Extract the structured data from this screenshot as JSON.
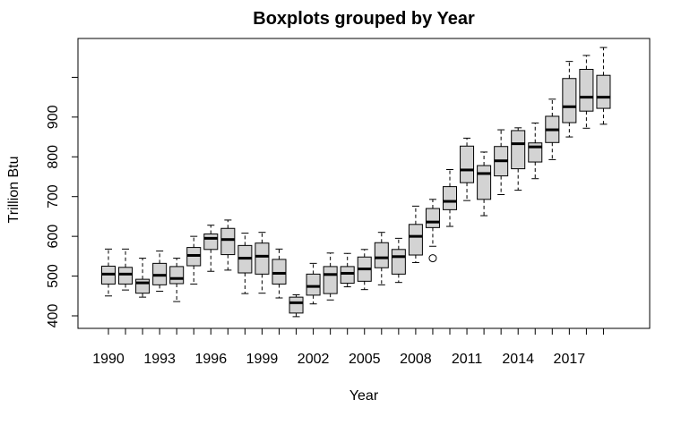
{
  "chart_data": {
    "type": "boxplot",
    "title": "Boxplots grouped by Year",
    "xlabel": "Year",
    "ylabel": "Trillion Btu",
    "ylim": [
      370,
      1010
    ],
    "yticks": [
      400,
      500,
      600,
      700,
      800,
      900
    ],
    "yticks_minor_unlabeled": [
      1000
    ],
    "xtick_labels": [
      "1990",
      "1993",
      "1996",
      "1999",
      "2002",
      "2005",
      "2008",
      "2011",
      "2014",
      "2017"
    ],
    "grid": false,
    "box_color": "#d3d3d3",
    "categories": [
      "1990",
      "1991",
      "1992",
      "1993",
      "1994",
      "1995",
      "1996",
      "1997",
      "1998",
      "1999",
      "2000",
      "2001",
      "2002",
      "2003",
      "2004",
      "2005",
      "2006",
      "2007",
      "2008",
      "2009",
      "2010",
      "2011",
      "2012",
      "2013",
      "2014",
      "2015",
      "2016",
      "2017",
      "2018",
      "2019"
    ],
    "boxes": [
      {
        "low": 450,
        "q1": 480,
        "median": 505,
        "q3": 525,
        "high": 568
      },
      {
        "low": 465,
        "q1": 480,
        "median": 505,
        "q3": 522,
        "high": 568
      },
      {
        "low": 447,
        "q1": 457,
        "median": 483,
        "q3": 492,
        "high": 545
      },
      {
        "low": 462,
        "q1": 478,
        "median": 502,
        "q3": 532,
        "high": 563
      },
      {
        "low": 436,
        "q1": 481,
        "median": 494,
        "q3": 524,
        "high": 545
      },
      {
        "low": 480,
        "q1": 526,
        "median": 552,
        "q3": 572,
        "high": 600
      },
      {
        "low": 512,
        "q1": 567,
        "median": 595,
        "q3": 606,
        "high": 628
      },
      {
        "low": 515,
        "q1": 554,
        "median": 592,
        "q3": 620,
        "high": 641
      },
      {
        "low": 456,
        "q1": 508,
        "median": 545,
        "q3": 577,
        "high": 608
      },
      {
        "low": 457,
        "q1": 505,
        "median": 550,
        "q3": 583,
        "high": 610
      },
      {
        "low": 445,
        "q1": 480,
        "median": 507,
        "q3": 542,
        "high": 568
      },
      {
        "low": 398,
        "q1": 407,
        "median": 433,
        "q3": 447,
        "high": 453
      },
      {
        "low": 430,
        "q1": 452,
        "median": 474,
        "q3": 505,
        "high": 532
      },
      {
        "low": 440,
        "q1": 456,
        "median": 504,
        "q3": 524,
        "high": 558
      },
      {
        "low": 473,
        "q1": 482,
        "median": 507,
        "q3": 524,
        "high": 557
      },
      {
        "low": 466,
        "q1": 487,
        "median": 518,
        "q3": 548,
        "high": 567
      },
      {
        "low": 478,
        "q1": 521,
        "median": 546,
        "q3": 584,
        "high": 610
      },
      {
        "low": 484,
        "q1": 505,
        "median": 549,
        "q3": 567,
        "high": 595
      },
      {
        "low": 534,
        "q1": 553,
        "median": 600,
        "q3": 630,
        "high": 676
      },
      {
        "low": 575,
        "q1": 622,
        "median": 636,
        "q3": 670,
        "high": 693,
        "outliers": [
          545
        ]
      },
      {
        "low": 625,
        "q1": 667,
        "median": 688,
        "q3": 725,
        "high": 768
      },
      {
        "low": 690,
        "q1": 735,
        "median": 767,
        "q3": 827,
        "high": 847
      },
      {
        "low": 652,
        "q1": 693,
        "median": 758,
        "q3": 778,
        "high": 812
      },
      {
        "low": 705,
        "q1": 752,
        "median": 790,
        "q3": 826,
        "high": 868
      },
      {
        "low": 716,
        "q1": 770,
        "median": 833,
        "q3": 866,
        "high": 873
      },
      {
        "low": 745,
        "q1": 787,
        "median": 825,
        "q3": 835,
        "high": 885
      },
      {
        "low": 793,
        "q1": 836,
        "median": 868,
        "q3": 902,
        "high": 945
      },
      {
        "low": 850,
        "q1": 886,
        "median": 926,
        "q3": 997,
        "high": 1040
      },
      {
        "low": 872,
        "q1": 915,
        "median": 950,
        "q3": 1020,
        "high": 1055
      },
      {
        "low": 882,
        "q1": 922,
        "median": 950,
        "q3": 1005,
        "high": 1075
      }
    ]
  }
}
